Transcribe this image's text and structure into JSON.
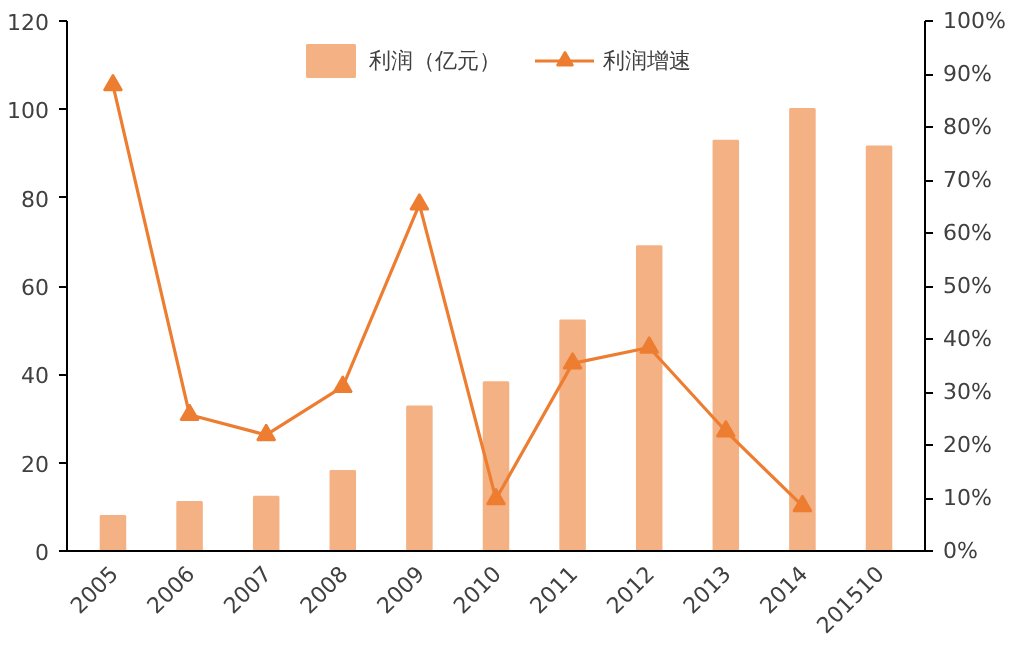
{
  "chart_data": {
    "type": "bar",
    "categories": [
      "2005",
      "2006",
      "2007",
      "2008",
      "2009",
      "2010",
      "2011",
      "2012",
      "2013",
      "2014",
      "201510"
    ],
    "series": [
      {
        "name": "利润（亿元）",
        "color": "#f4b183",
        "values": [
          7.9,
          11.1,
          12.3,
          18.1,
          32.7,
          38.2,
          52.2,
          69,
          92.9,
          100.1,
          91.6
        ]
      },
      {
        "name": "利润增速",
        "type": "line",
        "axis": "y2",
        "color": "#ed7d31",
        "marker": "triangle",
        "values": [
          87.9,
          25.7,
          21.9,
          31,
          65.4,
          9.8,
          35.4,
          38.4,
          22.6,
          8.5,
          null
        ]
      }
    ],
    "ylim": [
      0,
      120
    ],
    "yticks": [
      0,
      20,
      40,
      60,
      80,
      100,
      120
    ],
    "y2lim": [
      0,
      100
    ],
    "y2ticks": [
      {
        "value": 0,
        "label": "0%"
      },
      {
        "value": 10,
        "label": "10%"
      },
      {
        "value": 20,
        "label": "20%"
      },
      {
        "value": 30,
        "label": "30%"
      },
      {
        "value": 40,
        "label": "40%"
      },
      {
        "value": 50,
        "label": "50%"
      },
      {
        "value": 60,
        "label": "60%"
      },
      {
        "value": 70,
        "label": "70%"
      },
      {
        "value": 80,
        "label": "80%"
      },
      {
        "value": 90,
        "label": "90%"
      },
      {
        "value": 100,
        "label": "100%"
      }
    ],
    "legend": "top",
    "grid": false
  }
}
